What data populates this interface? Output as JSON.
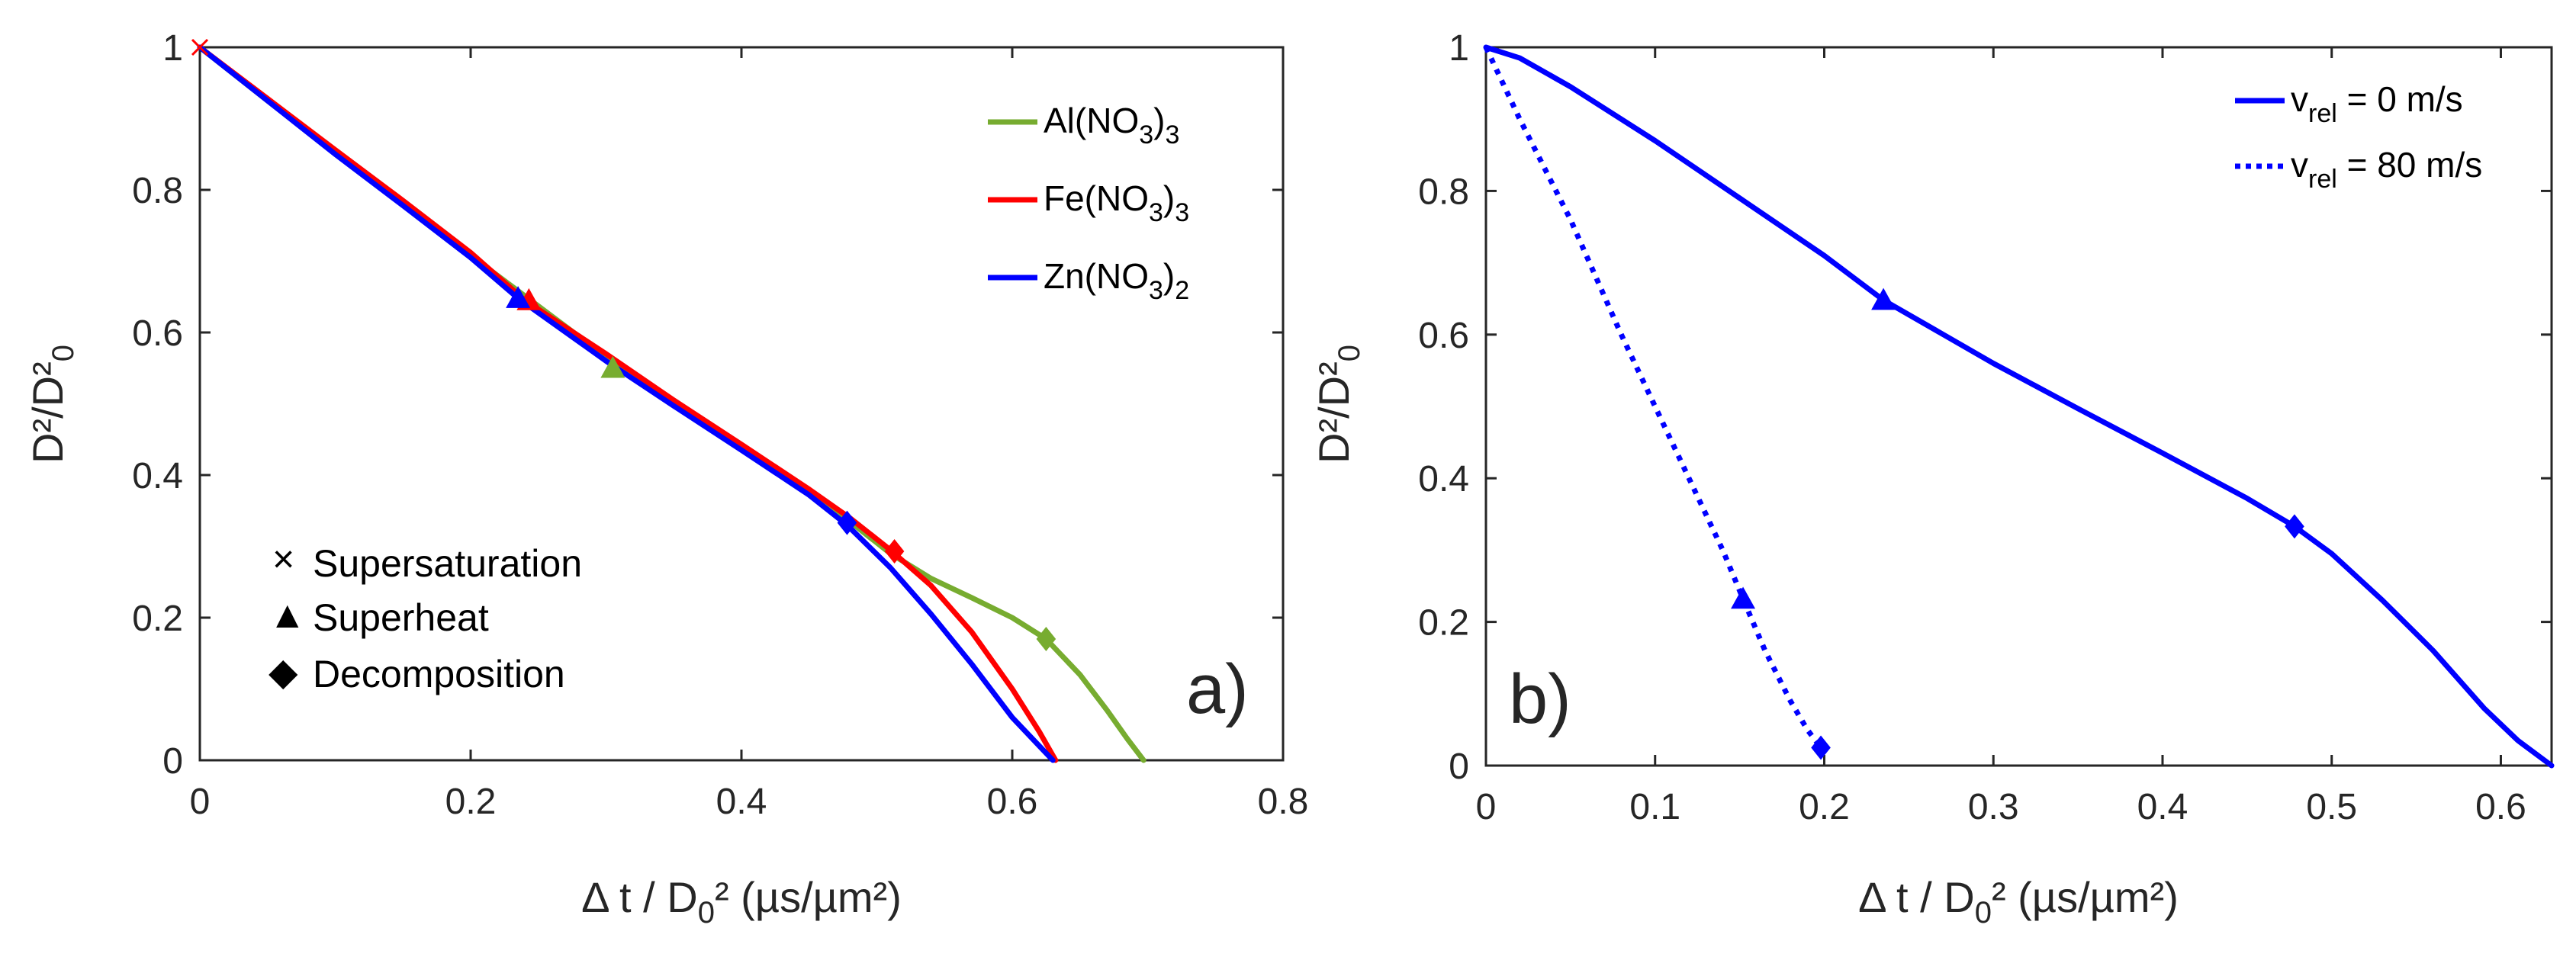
{
  "chart_data": [
    {
      "panel": "a",
      "type": "line",
      "panel_label": "a)",
      "xlabel": {
        "main": "Δ t / D",
        "sub": "0",
        "tail": "² (µs/µm²)"
      },
      "ylabel": {
        "main": "D²/D²",
        "sub": "0"
      },
      "xlim": [
        0,
        0.8
      ],
      "ylim": [
        0,
        1
      ],
      "xticks": [
        0,
        0.2,
        0.4,
        0.6,
        0.8
      ],
      "xtick_labels": [
        "0",
        "0.2",
        "0.4",
        "0.6",
        "0.8"
      ],
      "yticks": [
        0,
        0.2,
        0.4,
        0.6,
        0.8,
        1
      ],
      "ytick_labels": [
        "0",
        "0.2",
        "0.4",
        "0.6",
        "0.8",
        "1"
      ],
      "legend_position": "top-right",
      "series": [
        {
          "name": "Al(NO3)3",
          "label": {
            "main": "Al(NO",
            "sub": "3",
            "tail": ")",
            "sub2": "3"
          },
          "color": "#77ac30",
          "x": [
            0,
            0.05,
            0.1,
            0.15,
            0.2,
            0.25,
            0.3,
            0.35,
            0.4,
            0.45,
            0.48,
            0.51,
            0.54,
            0.57,
            0.6,
            0.625,
            0.65,
            0.67,
            0.685,
            0.697
          ],
          "y": [
            1,
            0.925,
            0.852,
            0.78,
            0.708,
            0.637,
            0.566,
            0.503,
            0.44,
            0.377,
            0.335,
            0.29,
            0.255,
            0.228,
            0.2,
            0.17,
            0.12,
            0.07,
            0.03,
            0
          ],
          "markers": [
            {
              "type": "superheat",
              "x": 0.305,
              "y": 0.55
            },
            {
              "type": "decomposition",
              "x": 0.625,
              "y": 0.17
            }
          ]
        },
        {
          "name": "Fe(NO3)3",
          "label": {
            "main": "Fe(NO",
            "sub": "3",
            "tail": ")",
            "sub2": "3"
          },
          "color": "#ff0000",
          "x": [
            0,
            0.05,
            0.1,
            0.15,
            0.2,
            0.24,
            0.3,
            0.35,
            0.4,
            0.45,
            0.48,
            0.51,
            0.54,
            0.57,
            0.6,
            0.62,
            0.632
          ],
          "y": [
            1,
            0.928,
            0.856,
            0.785,
            0.712,
            0.645,
            0.57,
            0.505,
            0.443,
            0.38,
            0.34,
            0.295,
            0.245,
            0.18,
            0.1,
            0.04,
            0
          ],
          "markers": [
            {
              "type": "superheat",
              "x": 0.243,
              "y": 0.645
            },
            {
              "type": "decomposition",
              "x": 0.513,
              "y": 0.293
            }
          ]
        },
        {
          "name": "Zn(NO3)2",
          "label": {
            "main": "Zn(NO",
            "sub": "3",
            "tail": ")",
            "sub2": "2"
          },
          "color": "#0000ff",
          "x": [
            0,
            0.05,
            0.1,
            0.15,
            0.2,
            0.235,
            0.3,
            0.35,
            0.4,
            0.45,
            0.478,
            0.51,
            0.54,
            0.57,
            0.6,
            0.62,
            0.63
          ],
          "y": [
            1,
            0.925,
            0.85,
            0.778,
            0.705,
            0.648,
            0.56,
            0.497,
            0.435,
            0.372,
            0.33,
            0.27,
            0.205,
            0.135,
            0.06,
            0.02,
            0
          ],
          "markers": [
            {
              "type": "superheat",
              "x": 0.235,
              "y": 0.648
            },
            {
              "type": "decomposition",
              "x": 0.478,
              "y": 0.333
            }
          ]
        }
      ],
      "extra_markers": [
        {
          "type": "supersaturation",
          "x": 0,
          "y": 1,
          "color": "#ff0000"
        }
      ],
      "marker_legend": [
        {
          "symbol": "×",
          "label": "Supersaturation"
        },
        {
          "symbol": "▲",
          "label": "Superheat"
        },
        {
          "symbol": "◆",
          "label": "Decomposition"
        }
      ]
    },
    {
      "panel": "b",
      "type": "line",
      "panel_label": "b)",
      "xlabel": {
        "main": "Δ t / D",
        "sub": "0",
        "tail": "² (µs/µm²)"
      },
      "ylabel": {
        "main": "D²/D²",
        "sub": "0"
      },
      "xlim": [
        0,
        0.63
      ],
      "ylim": [
        0,
        1
      ],
      "xticks": [
        0,
        0.1,
        0.2,
        0.3,
        0.4,
        0.5,
        0.6
      ],
      "xtick_labels": [
        "0",
        "0.1",
        "0.2",
        "0.3",
        "0.4",
        "0.5",
        "0.6"
      ],
      "yticks": [
        0,
        0.2,
        0.4,
        0.6,
        0.8,
        1
      ],
      "ytick_labels": [
        "0",
        "0.2",
        "0.4",
        "0.6",
        "0.8",
        "1"
      ],
      "legend_position": "top-right",
      "series": [
        {
          "name": "v_rel = 0 m/s",
          "label": {
            "main": "v",
            "sub": "rel",
            "tail": " = 0 m/s"
          },
          "color": "#0000ff",
          "style": "solid",
          "x": [
            0,
            0.02,
            0.05,
            0.1,
            0.15,
            0.2,
            0.235,
            0.3,
            0.35,
            0.4,
            0.45,
            0.478,
            0.5,
            0.53,
            0.56,
            0.59,
            0.61,
            0.63
          ],
          "y": [
            1,
            0.985,
            0.945,
            0.87,
            0.79,
            0.71,
            0.648,
            0.56,
            0.497,
            0.435,
            0.372,
            0.333,
            0.295,
            0.23,
            0.16,
            0.08,
            0.035,
            0
          ],
          "markers": [
            {
              "type": "superheat",
              "x": 0.235,
              "y": 0.648
            },
            {
              "type": "decomposition",
              "x": 0.478,
              "y": 0.333
            }
          ]
        },
        {
          "name": "v_rel = 80 m/s",
          "label": {
            "main": "v",
            "sub": "rel",
            "tail": " = 80 m/s"
          },
          "color": "#0000ff",
          "style": "dotted",
          "x": [
            0,
            0.02,
            0.05,
            0.08,
            0.1,
            0.12,
            0.14,
            0.152,
            0.165,
            0.18,
            0.19,
            0.198
          ],
          "y": [
            1,
            0.9,
            0.76,
            0.6,
            0.5,
            0.4,
            0.3,
            0.232,
            0.16,
            0.09,
            0.05,
            0.025
          ],
          "markers": [
            {
              "type": "superheat",
              "x": 0.152,
              "y": 0.232
            },
            {
              "type": "decomposition",
              "x": 0.198,
              "y": 0.025
            }
          ]
        }
      ]
    }
  ]
}
